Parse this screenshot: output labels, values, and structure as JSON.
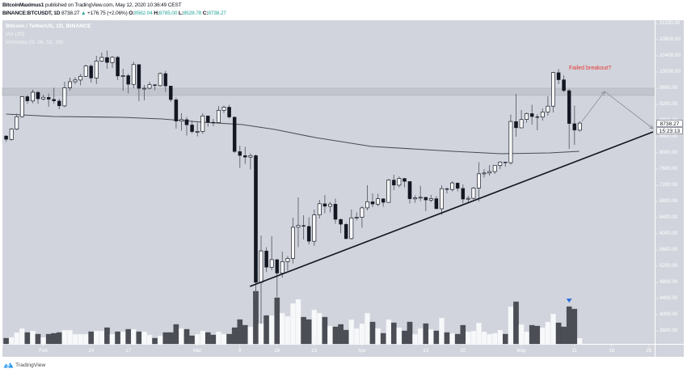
{
  "header": {
    "author": "BitcoinMaximus1",
    "published_text": " published on TradingView.com, May 12, 2020 10:36:49 CEST",
    "symbol": "BINANCE:BTCUSDT, 1D",
    "last_price": "8738.27",
    "change_arrow": "▲",
    "change": "+176.75 (+2.06%)",
    "ohlc": [
      {
        "label": "O:",
        "value": "8562.04"
      },
      {
        "label": "H:",
        "value": "8785.00"
      },
      {
        "label": "L:",
        "value": "8528.78"
      },
      {
        "label": "C:",
        "value": "8738.27"
      }
    ]
  },
  "legend": {
    "title": "Bitcoin / TetherUS, 1D, BINANCE",
    "volume": "Vol (20)",
    "ichimoku": "Ichimoku (9, 26, 52, 26)"
  },
  "price_label": {
    "value": "8738.27",
    "countdown": "15:23:13"
  },
  "annotation": {
    "text": "Failed breakout?",
    "color": "#e53935"
  },
  "footer": {
    "brand": "TradingView",
    "logo_icon": "tradingview-cloud-icon"
  },
  "colors": {
    "panel_bg": "#d1d4dc",
    "bear": "#131722",
    "bull": "#ffffff",
    "wick": "#5d606b",
    "vol_bear": "#4c4e56",
    "vol_bull": "#f7f8fa",
    "zone": "#c2c5cd",
    "overlay": "#4a4c52",
    "trendline": "#131722",
    "projection": "#8a8d96",
    "marker": "#2f6fe0",
    "up_text": "#26a69a"
  },
  "chart_data": {
    "type": "candlestick",
    "title": "Bitcoin / TetherUS, 1D, BINANCE",
    "xlabel": "",
    "ylabel": "",
    "ylim": [
      3280,
      11280
    ],
    "xlim_index": [
      -0.7,
      122.1
    ],
    "grid": false,
    "legend_position": "top-left",
    "y_ticks": [
      "11200.00",
      "10800.00",
      "10400.00",
      "10000.00",
      "9600.00",
      "9200.00",
      "8800.00",
      "8400.00",
      "8000.00",
      "7600.00",
      "7200.00",
      "6800.00",
      "6400.00",
      "6000.00",
      "5600.00",
      "5200.00",
      "4800.00",
      "4400.00",
      "4000.00",
      "3600.00"
    ],
    "x_ticks": [
      {
        "label": "Feb",
        "index": 7
      },
      {
        "label": "10",
        "index": 16
      },
      {
        "label": "17",
        "index": 23
      },
      {
        "label": "Mar",
        "index": 36
      },
      {
        "label": "9",
        "index": 44
      },
      {
        "label": "16",
        "index": 51
      },
      {
        "label": "23",
        "index": 58
      },
      {
        "label": "Apr",
        "index": 67
      },
      {
        "label": "13",
        "index": 79
      },
      {
        "label": "20",
        "index": 86
      },
      {
        "label": "May",
        "index": 97
      },
      {
        "label": "11",
        "index": 107
      },
      {
        "label": "18",
        "index": 114
      },
      {
        "label": "25",
        "index": 121
      }
    ],
    "candle_fields": [
      "date",
      "open",
      "high",
      "low",
      "close",
      "volume"
    ],
    "candles": [
      [
        "2020-01-25",
        8420,
        8440,
        8275,
        8335,
        28
      ],
      [
        "2020-01-26",
        8335,
        8610,
        8305,
        8590,
        32
      ],
      [
        "2020-01-27",
        8590,
        8975,
        8560,
        8895,
        56
      ],
      [
        "2020-01-28",
        8895,
        9415,
        8875,
        9392,
        76
      ],
      [
        "2020-01-29",
        9392,
        9430,
        9215,
        9283,
        56
      ],
      [
        "2020-01-30",
        9283,
        9565,
        9230,
        9500,
        64
      ],
      [
        "2020-01-31",
        9500,
        9530,
        9210,
        9334,
        48
      ],
      [
        "2020-02-01",
        9334,
        9440,
        9300,
        9376,
        32
      ],
      [
        "2020-02-02",
        9376,
        9470,
        9140,
        9326,
        48
      ],
      [
        "2020-02-03",
        9326,
        9610,
        9220,
        9283,
        52
      ],
      [
        "2020-02-04",
        9283,
        9340,
        9080,
        9161,
        56
      ],
      [
        "2020-02-05",
        9161,
        9760,
        9130,
        9610,
        68
      ],
      [
        "2020-02-06",
        9610,
        9860,
        9540,
        9760,
        68
      ],
      [
        "2020-02-07",
        9760,
        9870,
        9700,
        9803,
        48
      ],
      [
        "2020-02-08",
        9803,
        9950,
        9670,
        9895,
        48
      ],
      [
        "2020-02-09",
        9895,
        10180,
        9880,
        10151,
        48
      ],
      [
        "2020-02-10",
        10151,
        10190,
        9740,
        9852,
        60
      ],
      [
        "2020-02-11",
        9852,
        10400,
        9700,
        10268,
        64
      ],
      [
        "2020-02-12",
        10268,
        10480,
        10240,
        10360,
        64
      ],
      [
        "2020-02-13",
        10360,
        10530,
        10080,
        10234,
        80
      ],
      [
        "2020-02-14",
        10234,
        10390,
        10100,
        10363,
        48
      ],
      [
        "2020-02-15",
        10363,
        10400,
        9800,
        9899,
        60
      ],
      [
        "2020-02-16",
        9899,
        10080,
        9530,
        9912,
        60
      ],
      [
        "2020-02-17",
        9912,
        9960,
        9470,
        9696,
        72
      ],
      [
        "2020-02-18",
        9696,
        10250,
        9600,
        10185,
        72
      ],
      [
        "2020-02-19",
        10185,
        10200,
        9280,
        9595,
        60
      ],
      [
        "2020-02-20",
        9595,
        9680,
        9300,
        9600,
        60
      ],
      [
        "2020-02-21",
        9600,
        9760,
        9570,
        9686,
        44
      ],
      [
        "2020-02-22",
        9686,
        9700,
        9550,
        9663,
        28
      ],
      [
        "2020-02-23",
        9663,
        9990,
        9640,
        9962,
        40
      ],
      [
        "2020-02-24",
        9962,
        10030,
        9510,
        9653,
        56
      ],
      [
        "2020-02-25",
        9653,
        9660,
        9260,
        9315,
        56
      ],
      [
        "2020-02-26",
        9315,
        9370,
        8600,
        8786,
        96
      ],
      [
        "2020-02-27",
        8786,
        8980,
        8550,
        8823,
        76
      ],
      [
        "2020-02-28",
        8823,
        8890,
        8430,
        8692,
        72
      ],
      [
        "2020-02-29",
        8692,
        8800,
        8480,
        8523,
        40
      ],
      [
        "2020-03-01",
        8523,
        8750,
        8410,
        8531,
        48
      ],
      [
        "2020-03-02",
        8531,
        8980,
        8470,
        8915,
        64
      ],
      [
        "2020-03-03",
        8915,
        8930,
        8650,
        8760,
        56
      ],
      [
        "2020-03-04",
        8760,
        8840,
        8660,
        8750,
        44
      ],
      [
        "2020-03-05",
        8750,
        9160,
        8730,
        9054,
        60
      ],
      [
        "2020-03-06",
        9054,
        9170,
        8990,
        9131,
        48
      ],
      [
        "2020-03-07",
        9131,
        9190,
        8850,
        8886,
        48
      ],
      [
        "2020-03-08",
        8886,
        8900,
        8000,
        8033,
        80
      ],
      [
        "2020-03-09",
        8033,
        8180,
        7630,
        7935,
        120
      ],
      [
        "2020-03-10",
        7935,
        8150,
        7730,
        7895,
        92
      ],
      [
        "2020-03-11",
        7895,
        7990,
        7590,
        7934,
        84
      ],
      [
        "2020-03-12",
        7934,
        7966,
        4410,
        4800,
        260
      ],
      [
        "2020-03-13",
        4800,
        5955,
        3782,
        5578,
        100
      ],
      [
        "2020-03-14",
        5578,
        5670,
        5055,
        5172,
        140
      ],
      [
        "2020-03-15",
        5172,
        5940,
        5100,
        5361,
        140
      ],
      [
        "2020-03-16",
        5361,
        5380,
        4442,
        5028,
        228
      ],
      [
        "2020-03-17",
        5028,
        5560,
        4920,
        5312,
        152
      ],
      [
        "2020-03-18",
        5312,
        5450,
        5090,
        5393,
        136
      ],
      [
        "2020-03-19",
        5393,
        6400,
        5270,
        6162,
        200
      ],
      [
        "2020-03-20",
        6162,
        6900,
        5670,
        6208,
        220
      ],
      [
        "2020-03-21",
        6208,
        6460,
        5860,
        6186,
        132
      ],
      [
        "2020-03-22",
        6186,
        6410,
        5735,
        5816,
        120
      ],
      [
        "2020-03-23",
        5816,
        6600,
        5700,
        6469,
        168
      ],
      [
        "2020-03-24",
        6469,
        6840,
        6380,
        6744,
        152
      ],
      [
        "2020-03-25",
        6744,
        6960,
        6510,
        6680,
        132
      ],
      [
        "2020-03-26",
        6680,
        6790,
        6530,
        6737,
        88
      ],
      [
        "2020-03-27",
        6737,
        6870,
        6250,
        6359,
        84
      ],
      [
        "2020-03-28",
        6359,
        6380,
        6020,
        6236,
        96
      ],
      [
        "2020-03-29",
        6236,
        6270,
        5860,
        5881,
        68
      ],
      [
        "2020-03-30",
        5881,
        6600,
        5860,
        6394,
        120
      ],
      [
        "2020-03-31",
        6394,
        6530,
        6330,
        6410,
        76
      ],
      [
        "2020-04-01",
        6410,
        6680,
        6150,
        6642,
        100
      ],
      [
        "2020-04-02",
        6642,
        7200,
        6580,
        6794,
        152
      ],
      [
        "2020-04-03",
        6794,
        7000,
        6660,
        6733,
        108
      ],
      [
        "2020-04-04",
        6733,
        6990,
        6680,
        6868,
        76
      ],
      [
        "2020-04-05",
        6868,
        6880,
        6670,
        6778,
        52
      ],
      [
        "2020-04-06",
        6778,
        7360,
        6770,
        7330,
        120
      ],
      [
        "2020-04-07",
        7330,
        7460,
        7080,
        7201,
        104
      ],
      [
        "2020-04-08",
        7201,
        7420,
        7150,
        7370,
        80
      ],
      [
        "2020-04-09",
        7370,
        7380,
        7150,
        7294,
        64
      ],
      [
        "2020-04-10",
        7294,
        7300,
        6750,
        6865,
        108
      ],
      [
        "2020-04-11",
        6865,
        6950,
        6770,
        6888,
        48
      ],
      [
        "2020-04-12",
        6888,
        7190,
        6810,
        6905,
        76
      ],
      [
        "2020-04-13",
        6905,
        6910,
        6560,
        6835,
        100
      ],
      [
        "2020-04-14",
        6835,
        6960,
        6780,
        6870,
        72
      ],
      [
        "2020-04-15",
        6870,
        6930,
        6610,
        6620,
        64
      ],
      [
        "2020-04-16",
        6620,
        7200,
        6470,
        7117,
        128
      ],
      [
        "2020-04-17",
        7117,
        7150,
        7000,
        7097,
        56
      ],
      [
        "2020-04-18",
        7097,
        7300,
        7050,
        7258,
        52
      ],
      [
        "2020-04-19",
        7258,
        7270,
        7050,
        7123,
        48
      ],
      [
        "2020-04-20",
        7123,
        7220,
        6750,
        6857,
        92
      ],
      [
        "2020-04-21",
        6857,
        6940,
        6780,
        6879,
        60
      ],
      [
        "2020-04-22",
        6879,
        7160,
        6850,
        7132,
        64
      ],
      [
        "2020-04-23",
        7132,
        7770,
        6800,
        7483,
        104
      ],
      [
        "2020-04-24",
        7483,
        7600,
        7390,
        7505,
        60
      ],
      [
        "2020-04-25",
        7505,
        7700,
        7440,
        7539,
        48
      ],
      [
        "2020-04-26",
        7539,
        7700,
        7480,
        7694,
        52
      ],
      [
        "2020-04-27",
        7694,
        7795,
        7600,
        7775,
        68
      ],
      [
        "2020-04-28",
        7775,
        7780,
        7660,
        7759,
        48
      ],
      [
        "2020-04-29",
        7759,
        8950,
        7710,
        8778,
        184
      ],
      [
        "2020-04-30",
        8778,
        9460,
        8400,
        8620,
        208
      ],
      [
        "2020-05-01",
        8620,
        9060,
        8620,
        8826,
        96
      ],
      [
        "2020-05-02",
        8826,
        9000,
        8750,
        8973,
        60
      ],
      [
        "2020-05-03",
        8973,
        9190,
        8700,
        8897,
        92
      ],
      [
        "2020-05-04",
        8897,
        8960,
        8560,
        8885,
        88
      ],
      [
        "2020-05-05",
        8885,
        9100,
        8800,
        9011,
        80
      ],
      [
        "2020-05-06",
        9011,
        9400,
        8920,
        9157,
        108
      ],
      [
        "2020-05-07",
        9157,
        10000,
        9000,
        9987,
        148
      ],
      [
        "2020-05-08",
        9987,
        10070,
        9700,
        9809,
        104
      ],
      [
        "2020-05-09",
        9809,
        9920,
        9500,
        9540,
        84
      ],
      [
        "2020-05-10",
        9540,
        9580,
        8100,
        8723,
        184
      ],
      [
        "2020-05-11",
        8723,
        9170,
        8200,
        8561,
        172
      ],
      [
        "2020-05-12",
        8562.04,
        8785.0,
        8528.78,
        8738.27,
        28
      ]
    ],
    "overlay_line": {
      "name": "Ichimoku (9, 26, 52, 26)",
      "points": [
        [
          0,
          8960
        ],
        [
          9,
          8900
        ],
        [
          21.7,
          8880
        ],
        [
          29.3,
          8840
        ],
        [
          36.9,
          8760
        ],
        [
          44.5,
          8700
        ],
        [
          50.6,
          8580
        ],
        [
          58.2,
          8380
        ],
        [
          68.8,
          8160
        ],
        [
          84.1,
          8040
        ],
        [
          93.2,
          7980
        ],
        [
          102.3,
          8000
        ],
        [
          107.9,
          8040
        ]
      ]
    },
    "resistance_zone": [
      9420,
      9600
    ],
    "trendline": {
      "from": [
        45.9,
        4700
      ],
      "to": [
        121.8,
        8520
      ]
    },
    "projection": [
      [
        108.4,
        8780
      ],
      [
        112.7,
        9520
      ],
      [
        121.8,
        8600
      ]
    ],
    "marker": {
      "index": 106,
      "shape": "triangle-down"
    },
    "last_price": 8738.27
  }
}
